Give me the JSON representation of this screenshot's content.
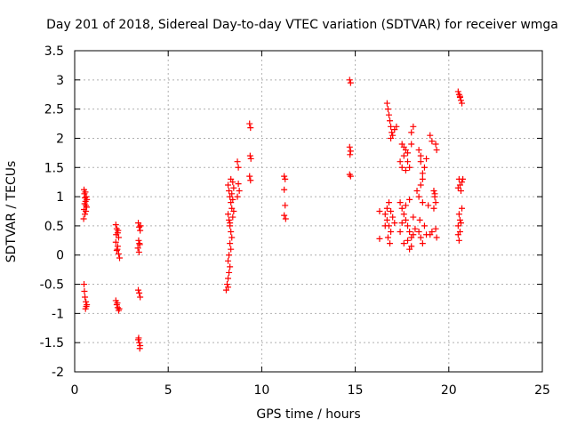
{
  "chart_data": {
    "type": "scatter",
    "title": "Day 201 of 2018, Sidereal Day-to-day VTEC variation (SDTVAR) for receiver wmga",
    "xlabel": "GPS time / hours",
    "ylabel": "SDTVAR / TECUs",
    "xlim": [
      0,
      25
    ],
    "ylim": [
      -2,
      3.5
    ],
    "xticks": [
      0,
      5,
      10,
      15,
      20,
      25
    ],
    "xtick_labels": [
      "0",
      "5",
      "10",
      "15",
      "20",
      "25"
    ],
    "yticks": [
      -2,
      -1.5,
      -1,
      -0.5,
      0,
      0.5,
      1,
      1.5,
      2,
      2.5,
      3,
      3.5
    ],
    "ytick_labels": [
      "-2",
      "-1.5",
      "-1",
      "-0.5",
      "0",
      "0.5",
      "1",
      "1.5",
      "2",
      "2.5",
      "3",
      "3.5"
    ],
    "grid": true,
    "marker": "+",
    "color": "#ff0000",
    "series": [
      {
        "name": "SDTVAR",
        "points": [
          [
            0.5,
            1.12
          ],
          [
            0.52,
            1.05
          ],
          [
            0.55,
            0.98
          ],
          [
            0.58,
            0.92
          ],
          [
            0.6,
            0.85
          ],
          [
            0.5,
            0.78
          ],
          [
            0.55,
            0.7
          ],
          [
            0.48,
            0.62
          ],
          [
            0.62,
            1.0
          ],
          [
            0.65,
            0.95
          ],
          [
            0.53,
            0.88
          ],
          [
            0.57,
            1.08
          ],
          [
            0.6,
            0.75
          ],
          [
            0.64,
            0.82
          ],
          [
            0.5,
            -0.5
          ],
          [
            0.52,
            -0.62
          ],
          [
            0.55,
            -0.72
          ],
          [
            0.6,
            -0.8
          ],
          [
            0.62,
            -0.88
          ],
          [
            0.58,
            -0.92
          ],
          [
            0.65,
            -0.85
          ],
          [
            2.2,
            0.52
          ],
          [
            2.25,
            0.45
          ],
          [
            2.3,
            0.38
          ],
          [
            2.35,
            0.3
          ],
          [
            2.2,
            0.22
          ],
          [
            2.3,
            0.15
          ],
          [
            2.25,
            0.08
          ],
          [
            2.35,
            0.02
          ],
          [
            2.4,
            -0.05
          ],
          [
            2.28,
            0.1
          ],
          [
            2.32,
            0.42
          ],
          [
            2.22,
            0.35
          ],
          [
            2.2,
            -0.78
          ],
          [
            2.25,
            -0.85
          ],
          [
            2.3,
            -0.9
          ],
          [
            2.35,
            -0.95
          ],
          [
            2.28,
            -0.82
          ],
          [
            2.38,
            -0.92
          ],
          [
            3.4,
            0.55
          ],
          [
            3.45,
            0.48
          ],
          [
            3.5,
            0.42
          ],
          [
            3.42,
            0.25
          ],
          [
            3.48,
            0.18
          ],
          [
            3.38,
            0.12
          ],
          [
            3.44,
            0.05
          ],
          [
            3.52,
            0.5
          ],
          [
            3.46,
            0.2
          ],
          [
            3.4,
            -0.6
          ],
          [
            3.45,
            -0.65
          ],
          [
            3.5,
            -0.72
          ],
          [
            3.4,
            -1.45
          ],
          [
            3.45,
            -1.5
          ],
          [
            3.5,
            -1.55
          ],
          [
            3.48,
            -1.6
          ],
          [
            3.42,
            -1.42
          ],
          [
            8.2,
            1.2
          ],
          [
            8.25,
            1.1
          ],
          [
            8.3,
            1.0
          ],
          [
            8.35,
            0.9
          ],
          [
            8.4,
            0.8
          ],
          [
            8.2,
            0.7
          ],
          [
            8.25,
            0.6
          ],
          [
            8.3,
            0.5
          ],
          [
            8.35,
            0.4
          ],
          [
            8.4,
            0.3
          ],
          [
            8.3,
            0.2
          ],
          [
            8.35,
            0.1
          ],
          [
            8.25,
            0.0
          ],
          [
            8.2,
            -0.1
          ],
          [
            8.3,
            -0.2
          ],
          [
            8.25,
            -0.3
          ],
          [
            8.2,
            -0.4
          ],
          [
            8.15,
            -0.5
          ],
          [
            8.1,
            -0.6
          ],
          [
            8.2,
            -0.55
          ],
          [
            8.35,
            1.3
          ],
          [
            8.45,
            1.25
          ],
          [
            8.5,
            1.15
          ],
          [
            8.4,
            1.05
          ],
          [
            8.45,
            0.95
          ],
          [
            8.5,
            0.75
          ],
          [
            8.45,
            0.65
          ],
          [
            8.3,
            0.55
          ],
          [
            8.7,
            1.6
          ],
          [
            8.75,
            1.5
          ],
          [
            8.8,
            1.1
          ],
          [
            8.7,
            1.0
          ],
          [
            8.75,
            1.22
          ],
          [
            9.35,
            2.25
          ],
          [
            9.4,
            2.18
          ],
          [
            9.38,
            1.7
          ],
          [
            9.42,
            1.65
          ],
          [
            9.35,
            1.35
          ],
          [
            9.4,
            1.28
          ],
          [
            11.2,
            1.35
          ],
          [
            11.25,
            1.3
          ],
          [
            11.2,
            1.12
          ],
          [
            11.25,
            0.85
          ],
          [
            11.2,
            0.68
          ],
          [
            11.28,
            0.62
          ],
          [
            14.7,
            3.0
          ],
          [
            14.75,
            2.95
          ],
          [
            14.7,
            1.85
          ],
          [
            14.75,
            1.78
          ],
          [
            14.72,
            1.72
          ],
          [
            14.7,
            1.38
          ],
          [
            14.75,
            1.35
          ],
          [
            16.3,
            0.28
          ],
          [
            16.3,
            0.75
          ],
          [
            16.6,
            0.7
          ],
          [
            16.7,
            0.6
          ],
          [
            16.8,
            0.5
          ],
          [
            16.9,
            0.4
          ],
          [
            16.7,
            0.8
          ],
          [
            16.8,
            0.9
          ],
          [
            16.6,
            0.5
          ],
          [
            16.9,
            0.75
          ],
          [
            17.0,
            0.65
          ],
          [
            17.1,
            0.55
          ],
          [
            16.75,
            0.3
          ],
          [
            16.85,
            0.2
          ],
          [
            16.7,
            2.6
          ],
          [
            16.75,
            2.5
          ],
          [
            16.8,
            2.4
          ],
          [
            16.85,
            2.3
          ],
          [
            16.9,
            2.2
          ],
          [
            16.95,
            2.1
          ],
          [
            17.0,
            2.05
          ],
          [
            17.1,
            2.15
          ],
          [
            17.2,
            2.2
          ],
          [
            16.9,
            2.0
          ],
          [
            17.4,
            1.6
          ],
          [
            17.5,
            1.5
          ],
          [
            17.6,
            1.7
          ],
          [
            17.7,
            1.8
          ],
          [
            17.8,
            1.6
          ],
          [
            17.9,
            1.5
          ],
          [
            18.0,
            1.9
          ],
          [
            18.1,
            2.2
          ],
          [
            18.0,
            2.1
          ],
          [
            17.5,
            1.9
          ],
          [
            17.6,
            1.85
          ],
          [
            17.8,
            1.75
          ],
          [
            17.7,
            1.45
          ],
          [
            17.4,
            0.9
          ],
          [
            17.5,
            0.8
          ],
          [
            17.6,
            0.7
          ],
          [
            17.7,
            0.6
          ],
          [
            17.8,
            0.5
          ],
          [
            17.9,
            0.4
          ],
          [
            18.0,
            0.3
          ],
          [
            17.6,
            0.2
          ],
          [
            17.8,
            0.25
          ],
          [
            18.0,
            0.15
          ],
          [
            17.9,
            0.1
          ],
          [
            18.1,
            0.35
          ],
          [
            18.2,
            0.45
          ],
          [
            17.5,
            0.55
          ],
          [
            17.7,
            0.85
          ],
          [
            17.9,
            0.95
          ],
          [
            18.1,
            0.65
          ],
          [
            17.4,
            0.4
          ],
          [
            18.4,
            1.8
          ],
          [
            18.5,
            1.6
          ],
          [
            18.6,
            1.4
          ],
          [
            18.5,
            1.2
          ],
          [
            18.4,
            1.0
          ],
          [
            18.6,
            1.3
          ],
          [
            18.7,
            1.5
          ],
          [
            18.5,
            1.7
          ],
          [
            18.6,
            0.9
          ],
          [
            18.4,
            0.4
          ],
          [
            18.5,
            0.3
          ],
          [
            18.6,
            0.2
          ],
          [
            18.7,
            0.5
          ],
          [
            18.8,
            0.35
          ],
          [
            18.45,
            0.6
          ],
          [
            18.8,
            1.65
          ],
          [
            18.3,
            1.1
          ],
          [
            19.0,
            2.05
          ],
          [
            19.1,
            1.95
          ],
          [
            19.2,
            1.1
          ],
          [
            19.25,
            1.0
          ],
          [
            19.3,
            0.9
          ],
          [
            19.2,
            0.8
          ],
          [
            19.0,
            0.35
          ],
          [
            19.1,
            0.4
          ],
          [
            19.3,
            1.9
          ],
          [
            19.35,
            1.8
          ],
          [
            19.25,
            1.05
          ],
          [
            19.3,
            0.45
          ],
          [
            19.35,
            0.3
          ],
          [
            18.9,
            0.85
          ],
          [
            20.5,
            2.8
          ],
          [
            20.55,
            2.75
          ],
          [
            20.6,
            2.7
          ],
          [
            20.65,
            2.65
          ],
          [
            20.7,
            2.6
          ],
          [
            20.6,
            2.72
          ],
          [
            20.55,
            1.3
          ],
          [
            20.6,
            1.2
          ],
          [
            20.65,
            1.1
          ],
          [
            20.7,
            1.25
          ],
          [
            20.5,
            1.15
          ],
          [
            20.55,
            0.7
          ],
          [
            20.6,
            0.6
          ],
          [
            20.5,
            0.5
          ],
          [
            20.65,
            0.55
          ],
          [
            20.7,
            0.8
          ],
          [
            20.5,
            0.35
          ],
          [
            20.55,
            0.25
          ],
          [
            20.6,
            0.4
          ],
          [
            20.75,
            1.3
          ]
        ]
      }
    ]
  }
}
